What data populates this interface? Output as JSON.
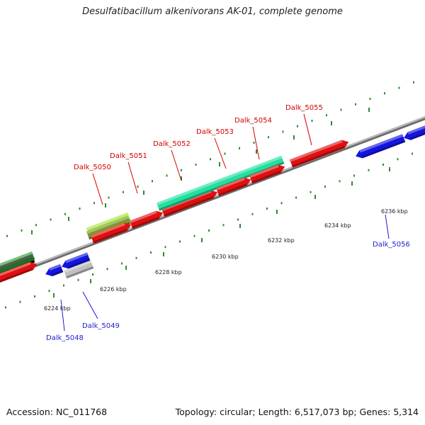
{
  "title": "Desulfatibacillum alkenivorans AK-01, complete genome",
  "footer": {
    "accession": "Accession: NC_011768",
    "summary": "Topology: circular; Length: 6,517,073 bp; Genes: 5,314"
  },
  "colors": {
    "background": "#ffffff",
    "backbone": "#8a8a8a",
    "tick": "#2e8b2e",
    "forward_label": "#d40000",
    "reverse_label": "#1c1cd0",
    "cds_forward": "#e01010",
    "cds_reverse": "#1414e0",
    "rna_forward": "#22e0a0",
    "gene_lightgreen": "#a6e63a",
    "gene_darkgreen": "#2ea02e",
    "gene_gray": "#c0c0c0"
  },
  "ruler_labels": [
    {
      "id": "tick-6224",
      "text": "6224 kbp"
    },
    {
      "id": "tick-6226",
      "text": "6226 kbp"
    },
    {
      "id": "tick-6228",
      "text": "6228 kbp"
    },
    {
      "id": "tick-6230",
      "text": "6230 kbp"
    },
    {
      "id": "tick-6232",
      "text": "6232 kbp"
    },
    {
      "id": "tick-6234",
      "text": "6234 kbp"
    },
    {
      "id": "tick-6236",
      "text": "6236 kbp"
    }
  ],
  "gene_labels": [
    {
      "id": "Dalk_5048",
      "text": "Dalk_5048",
      "strand": "reverse"
    },
    {
      "id": "Dalk_5049",
      "text": "Dalk_5049",
      "strand": "reverse"
    },
    {
      "id": "Dalk_5050",
      "text": "Dalk_5050",
      "strand": "forward"
    },
    {
      "id": "Dalk_5051",
      "text": "Dalk_5051",
      "strand": "forward"
    },
    {
      "id": "Dalk_5052",
      "text": "Dalk_5052",
      "strand": "forward"
    },
    {
      "id": "Dalk_5053",
      "text": "Dalk_5053",
      "strand": "forward"
    },
    {
      "id": "Dalk_5054",
      "text": "Dalk_5054",
      "strand": "forward"
    },
    {
      "id": "Dalk_5055",
      "text": "Dalk_5055",
      "strand": "forward"
    },
    {
      "id": "Dalk_5056",
      "text": "Dalk_5056",
      "strand": "reverse"
    }
  ]
}
